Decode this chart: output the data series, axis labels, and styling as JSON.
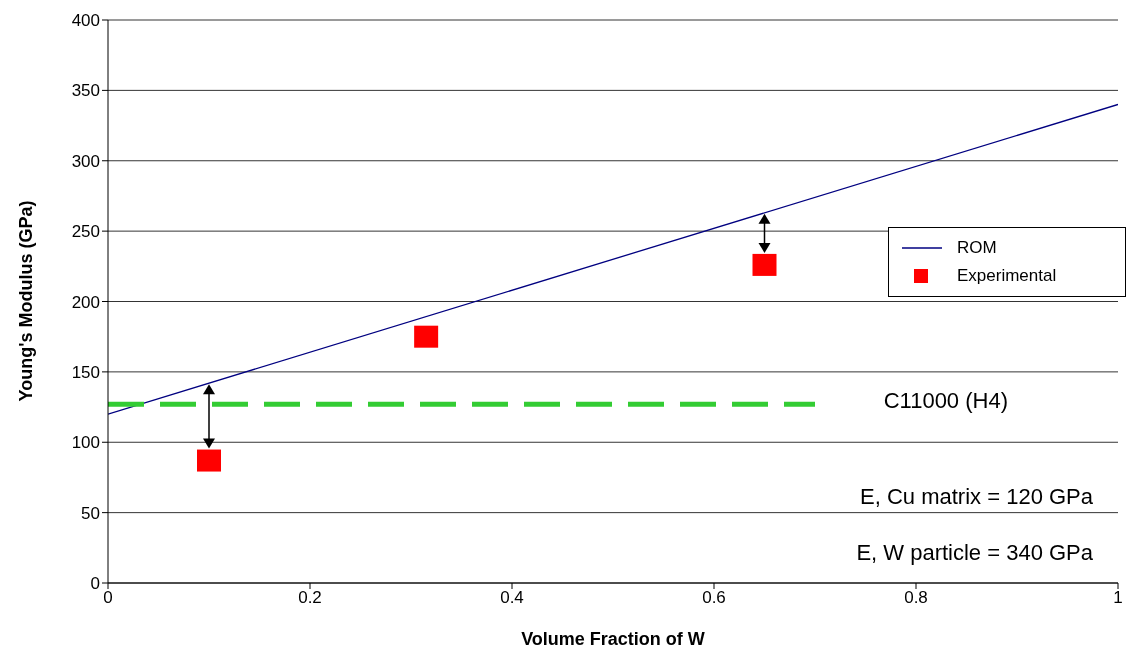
{
  "chart_data": {
    "type": "line",
    "xlabel": "Volume Fraction of W",
    "ylabel": "Young's Modulus (GPa)",
    "xlim": [
      0,
      1
    ],
    "xticks": [
      0,
      0.2,
      0.4,
      0.6,
      0.8,
      1
    ],
    "ylim": [
      0,
      400
    ],
    "yticks": [
      0,
      50,
      100,
      150,
      200,
      250,
      300,
      350,
      400
    ],
    "grid": "y",
    "legend": "right",
    "series": [
      {
        "name": "ROM",
        "color": "#000080",
        "x": [
          0,
          1
        ],
        "values": [
          120,
          340
        ]
      },
      {
        "name": "Experimental",
        "type": "scatter",
        "marker": "square",
        "color": "#ff0000",
        "x": [
          0.1,
          0.315,
          0.65
        ],
        "values": [
          87,
          175,
          226
        ]
      },
      {
        "line_style": "dashed",
        "color": "#33cc33",
        "x": [
          0,
          0.7
        ],
        "values": [
          127,
          127
        ]
      }
    ],
    "annotations": [
      "C11000 (H4)",
      "E, Cu matrix = 120 GPa",
      "E, W particle = 340 GPa"
    ]
  }
}
